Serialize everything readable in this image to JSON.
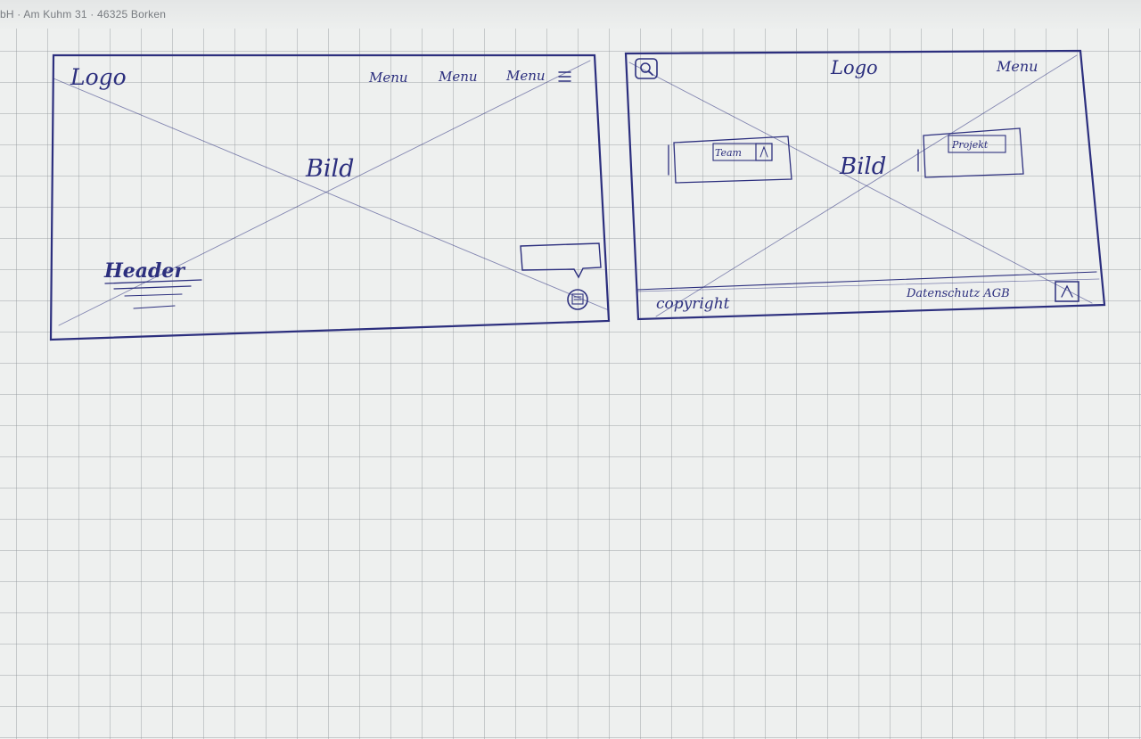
{
  "paper": {
    "address_text": "bH · Am Kuhm 31 · 46325 Borken"
  },
  "wireframe_left": {
    "logo": "Logo",
    "menu_items": [
      "Menu",
      "Menu",
      "Menu"
    ],
    "image_label": "Bild",
    "header_label": "Header"
  },
  "wireframe_right": {
    "logo": "Logo",
    "menu": "Menu",
    "image_label": "Bild",
    "card_left_label": "Team",
    "card_right_label": "Projekt",
    "footer_copyright": "copyright",
    "footer_links": "Datenschutz AGB"
  },
  "colors": {
    "ink": "#2c2f7e",
    "paper": "#eef0ef",
    "grid": "#9a9fa4"
  }
}
